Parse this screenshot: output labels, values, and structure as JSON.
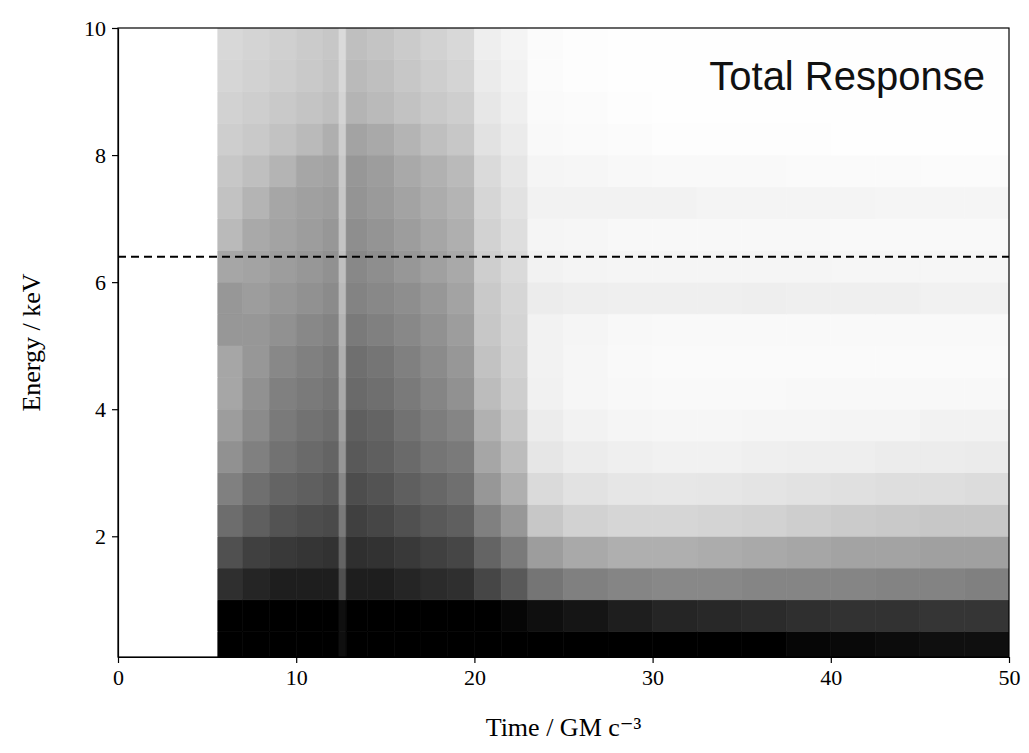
{
  "chart_data": {
    "type": "heatmap",
    "title": "Total Response",
    "x_label": "Time / GM c⁻³",
    "y_label": "Energy / keV",
    "xlim": [
      0,
      50
    ],
    "ylim": [
      0.1,
      10
    ],
    "xticks": [
      0,
      10,
      20,
      30,
      40,
      50
    ],
    "yticks": [
      2,
      4,
      6,
      8,
      10
    ],
    "x_bins": [
      0,
      5.6,
      7,
      8.5,
      10,
      11.5,
      12.4,
      12.8,
      14,
      15.5,
      17,
      18.5,
      20,
      21.5,
      23,
      25,
      27.5,
      30,
      32.5,
      35,
      37.5,
      40,
      42.5,
      45,
      47.5,
      50
    ],
    "y_bins": [
      0.1,
      0.5,
      1,
      1.5,
      2,
      2.5,
      3,
      3.5,
      4,
      4.5,
      5,
      5.5,
      6,
      6.5,
      7,
      7.5,
      8,
      8.5,
      9,
      9.5,
      10
    ],
    "values": [
      [
        0,
        1,
        1,
        1,
        1,
        1,
        0.95,
        1,
        1,
        1,
        1,
        1,
        1,
        1,
        1,
        1,
        1,
        1,
        1,
        1,
        0.98,
        0.97,
        0.96,
        0.95,
        0.95
      ],
      [
        0,
        1,
        1,
        1,
        1,
        1,
        0.95,
        1,
        1,
        1,
        1,
        1,
        1,
        0.98,
        0.95,
        0.93,
        0.9,
        0.88,
        0.87,
        0.86,
        0.85,
        0.84,
        0.84,
        0.83,
        0.83
      ],
      [
        0,
        0.85,
        0.88,
        0.9,
        0.9,
        0.9,
        0.75,
        0.9,
        0.9,
        0.88,
        0.86,
        0.85,
        0.78,
        0.72,
        0.62,
        0.58,
        0.56,
        0.55,
        0.55,
        0.56,
        0.56,
        0.56,
        0.57,
        0.57,
        0.58
      ],
      [
        0,
        0.75,
        0.8,
        0.82,
        0.83,
        0.84,
        0.68,
        0.85,
        0.84,
        0.82,
        0.8,
        0.78,
        0.68,
        0.6,
        0.48,
        0.44,
        0.42,
        0.42,
        0.43,
        0.44,
        0.45,
        0.46,
        0.46,
        0.47,
        0.47
      ],
      [
        0,
        0.65,
        0.7,
        0.74,
        0.76,
        0.77,
        0.6,
        0.8,
        0.78,
        0.75,
        0.72,
        0.7,
        0.58,
        0.5,
        0.33,
        0.28,
        0.26,
        0.26,
        0.27,
        0.28,
        0.3,
        0.31,
        0.32,
        0.33,
        0.33
      ],
      [
        0,
        0.58,
        0.64,
        0.68,
        0.7,
        0.72,
        0.55,
        0.76,
        0.74,
        0.7,
        0.67,
        0.64,
        0.5,
        0.42,
        0.24,
        0.2,
        0.18,
        0.17,
        0.18,
        0.19,
        0.2,
        0.21,
        0.22,
        0.22,
        0.23
      ],
      [
        0,
        0.52,
        0.58,
        0.63,
        0.66,
        0.68,
        0.5,
        0.72,
        0.7,
        0.66,
        0.62,
        0.6,
        0.45,
        0.37,
        0.18,
        0.14,
        0.12,
        0.11,
        0.11,
        0.12,
        0.13,
        0.13,
        0.14,
        0.14,
        0.15
      ],
      [
        0,
        0.48,
        0.54,
        0.6,
        0.63,
        0.65,
        0.47,
        0.7,
        0.68,
        0.63,
        0.59,
        0.56,
        0.41,
        0.33,
        0.14,
        0.1,
        0.08,
        0.07,
        0.07,
        0.08,
        0.08,
        0.09,
        0.09,
        0.1,
        0.1
      ],
      [
        0,
        0.45,
        0.52,
        0.58,
        0.6,
        0.62,
        0.44,
        0.66,
        0.64,
        0.6,
        0.56,
        0.52,
        0.37,
        0.3,
        0.11,
        0.07,
        0.06,
        0.05,
        0.05,
        0.05,
        0.06,
        0.06,
        0.06,
        0.06,
        0.06
      ],
      [
        0,
        0.45,
        0.5,
        0.55,
        0.58,
        0.6,
        0.42,
        0.64,
        0.62,
        0.58,
        0.54,
        0.5,
        0.35,
        0.28,
        0.1,
        0.07,
        0.05,
        0.04,
        0.04,
        0.04,
        0.04,
        0.04,
        0.04,
        0.04,
        0.04
      ],
      [
        0,
        0.5,
        0.5,
        0.52,
        0.55,
        0.57,
        0.4,
        0.6,
        0.58,
        0.55,
        0.52,
        0.48,
        0.33,
        0.27,
        0.1,
        0.08,
        0.06,
        0.05,
        0.05,
        0.05,
        0.05,
        0.05,
        0.05,
        0.05,
        0.05
      ],
      [
        0,
        0.5,
        0.48,
        0.5,
        0.52,
        0.54,
        0.38,
        0.57,
        0.55,
        0.53,
        0.5,
        0.46,
        0.32,
        0.26,
        0.14,
        0.13,
        0.12,
        0.12,
        0.12,
        0.13,
        0.12,
        0.12,
        0.12,
        0.11,
        0.11
      ],
      [
        0,
        0.45,
        0.46,
        0.48,
        0.5,
        0.52,
        0.36,
        0.55,
        0.53,
        0.5,
        0.47,
        0.44,
        0.3,
        0.24,
        0.1,
        0.09,
        0.08,
        0.08,
        0.08,
        0.08,
        0.08,
        0.07,
        0.07,
        0.07,
        0.07
      ],
      [
        0,
        0.38,
        0.44,
        0.46,
        0.48,
        0.5,
        0.34,
        0.53,
        0.51,
        0.48,
        0.45,
        0.42,
        0.28,
        0.22,
        0.08,
        0.07,
        0.06,
        0.06,
        0.06,
        0.06,
        0.06,
        0.05,
        0.05,
        0.05,
        0.05
      ],
      [
        0,
        0.35,
        0.4,
        0.45,
        0.47,
        0.48,
        0.33,
        0.51,
        0.49,
        0.46,
        0.43,
        0.4,
        0.26,
        0.2,
        0.1,
        0.1,
        0.1,
        0.1,
        0.09,
        0.09,
        0.09,
        0.09,
        0.08,
        0.08,
        0.08
      ],
      [
        0,
        0.33,
        0.36,
        0.4,
        0.45,
        0.46,
        0.32,
        0.5,
        0.48,
        0.44,
        0.41,
        0.38,
        0.24,
        0.18,
        0.08,
        0.07,
        0.06,
        0.05,
        0.05,
        0.05,
        0.04,
        0.04,
        0.04,
        0.03,
        0.03
      ],
      [
        0,
        0.3,
        0.32,
        0.35,
        0.38,
        0.42,
        0.3,
        0.46,
        0.44,
        0.4,
        0.36,
        0.33,
        0.2,
        0.15,
        0.05,
        0.04,
        0.03,
        0.02,
        0.02,
        0.02,
        0.02,
        0.01,
        0.01,
        0.01,
        0.01
      ],
      [
        0,
        0.28,
        0.3,
        0.32,
        0.34,
        0.36,
        0.27,
        0.4,
        0.38,
        0.35,
        0.32,
        0.3,
        0.17,
        0.12,
        0.04,
        0.03,
        0.02,
        0.01,
        0.01,
        0.01,
        0.01,
        0.01,
        0.01,
        0.01,
        0.01
      ],
      [
        0,
        0.26,
        0.28,
        0.3,
        0.32,
        0.34,
        0.25,
        0.38,
        0.36,
        0.33,
        0.3,
        0.27,
        0.15,
        0.1,
        0.03,
        0.02,
        0.01,
        0.01,
        0.01,
        0.01,
        0.01,
        0.01,
        0.01,
        0.01,
        0.01
      ],
      [
        0,
        0.25,
        0.27,
        0.29,
        0.31,
        0.33,
        0.24,
        0.36,
        0.34,
        0.31,
        0.28,
        0.25,
        0.13,
        0.09,
        0.03,
        0.02,
        0.01,
        0.01,
        0.01,
        0.01,
        0.01,
        0.01,
        0.01,
        0.01,
        0.01
      ]
    ],
    "reference_lines": [
      {
        "y": 6.4,
        "line_style": "dashed",
        "color": "#000000"
      }
    ]
  }
}
